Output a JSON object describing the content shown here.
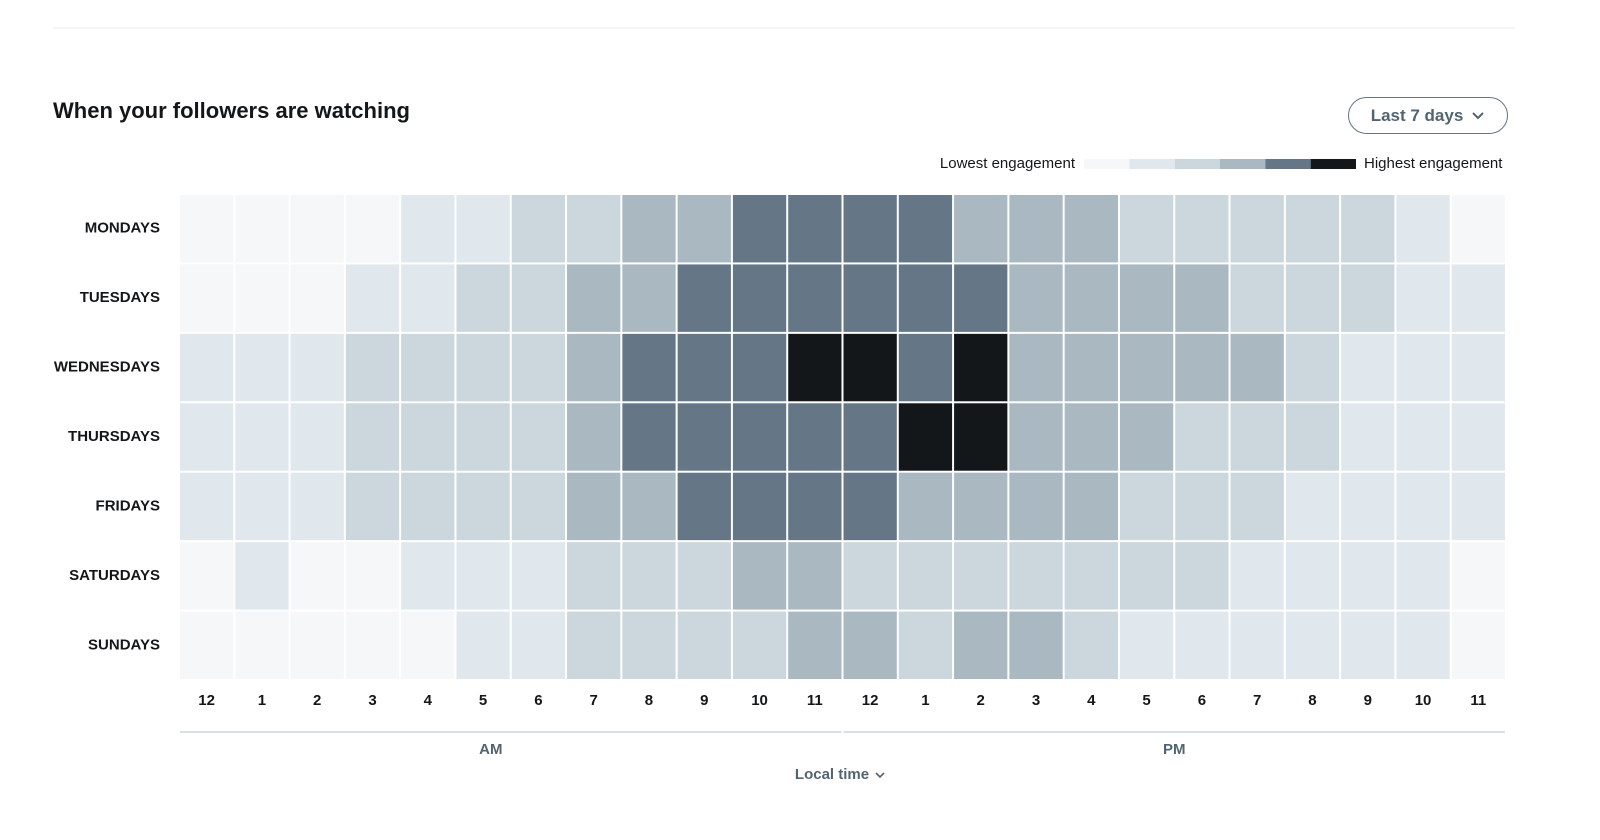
{
  "chart_data": {
    "type": "heatmap",
    "title": "When your followers are watching",
    "range_button": "Last 7 days",
    "legend_low": "Lowest engagement",
    "legend_high": "Highest engagement",
    "scale": [
      1,
      2,
      3,
      4,
      5,
      6
    ],
    "colors": [
      "#f5f7f9",
      "#e1e8ed",
      "#ccd6dd",
      "#aab8c2",
      "#657786",
      "#14171a"
    ],
    "rows": [
      "MONDAYS",
      "TUESDAYS",
      "WEDNESDAYS",
      "THURSDAYS",
      "FRIDAYS",
      "SATURDAYS",
      "SUNDAYS"
    ],
    "columns": [
      "12",
      "1",
      "2",
      "3",
      "4",
      "5",
      "6",
      "7",
      "8",
      "9",
      "10",
      "11",
      "12",
      "1",
      "2",
      "3",
      "4",
      "5",
      "6",
      "7",
      "8",
      "9",
      "10",
      "11"
    ],
    "periods": [
      "AM",
      "PM"
    ],
    "x_label": "Local time",
    "values": [
      [
        1,
        1,
        1,
        1,
        2,
        2,
        3,
        3,
        4,
        4,
        5,
        5,
        5,
        5,
        4,
        4,
        4,
        3,
        3,
        3,
        3,
        3,
        2,
        1
      ],
      [
        1,
        1,
        1,
        2,
        2,
        3,
        3,
        4,
        4,
        5,
        5,
        5,
        5,
        5,
        5,
        4,
        4,
        4,
        4,
        3,
        3,
        3,
        2,
        2
      ],
      [
        2,
        2,
        2,
        3,
        3,
        3,
        3,
        4,
        5,
        5,
        5,
        6,
        6,
        5,
        6,
        4,
        4,
        4,
        4,
        4,
        3,
        2,
        2,
        2
      ],
      [
        2,
        2,
        2,
        3,
        3,
        3,
        3,
        4,
        5,
        5,
        5,
        5,
        5,
        6,
        6,
        4,
        4,
        4,
        3,
        3,
        3,
        2,
        2,
        2
      ],
      [
        2,
        2,
        2,
        3,
        3,
        3,
        3,
        4,
        4,
        5,
        5,
        5,
        5,
        4,
        4,
        4,
        4,
        3,
        3,
        3,
        2,
        2,
        2,
        2
      ],
      [
        1,
        2,
        1,
        1,
        2,
        2,
        2,
        3,
        3,
        3,
        4,
        4,
        3,
        3,
        3,
        3,
        3,
        3,
        3,
        2,
        2,
        2,
        2,
        1
      ],
      [
        1,
        1,
        1,
        1,
        1,
        2,
        2,
        3,
        3,
        3,
        3,
        4,
        4,
        3,
        4,
        4,
        3,
        2,
        2,
        2,
        2,
        2,
        2,
        1
      ]
    ]
  }
}
